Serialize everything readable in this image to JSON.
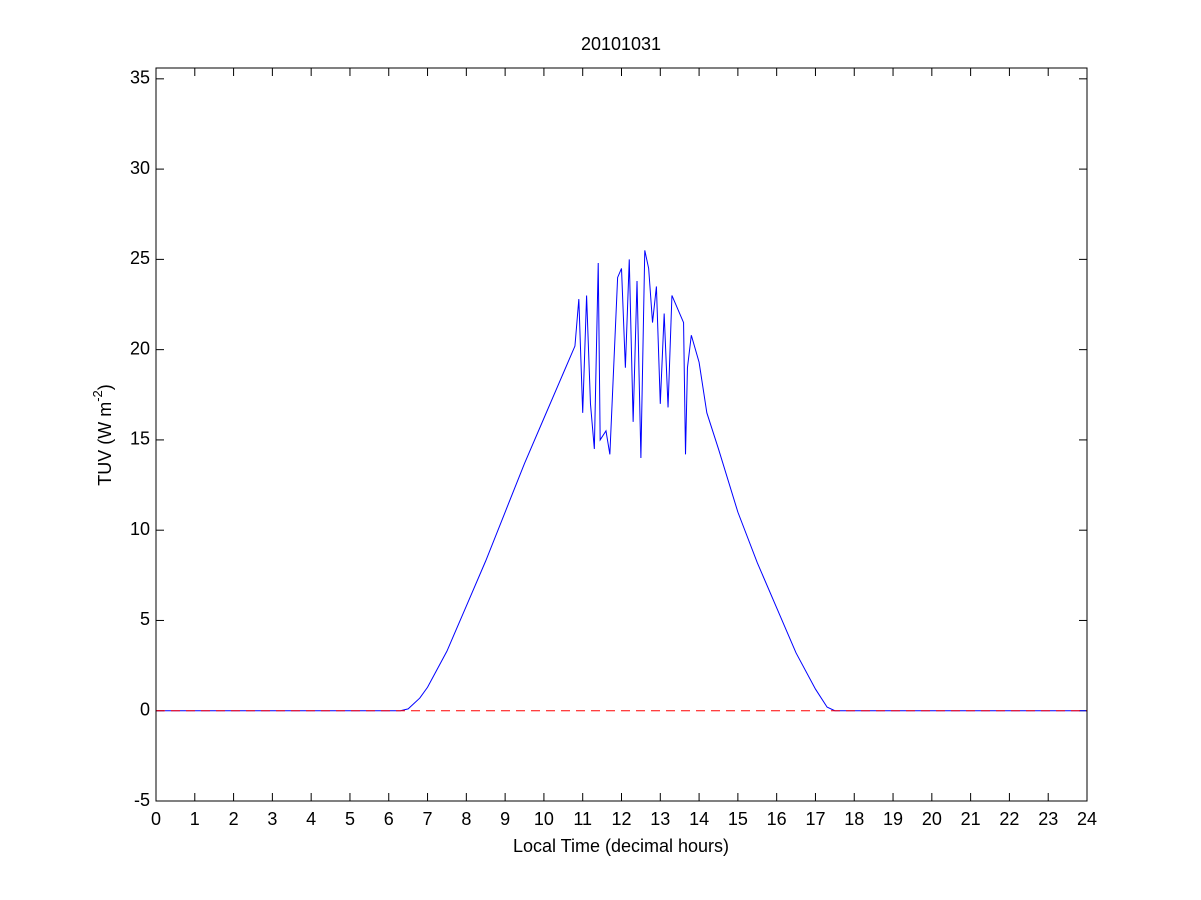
{
  "chart_data": {
    "type": "line",
    "title": "20101031",
    "xlabel": "Local Time (decimal hours)",
    "ylabel": {
      "text": "TUV (W m",
      "superscript": "-2",
      "suffix": ")"
    },
    "xlim": [
      0,
      24
    ],
    "xticks": [
      0,
      1,
      2,
      3,
      4,
      5,
      6,
      7,
      8,
      9,
      10,
      11,
      12,
      13,
      14,
      15,
      16,
      17,
      18,
      19,
      20,
      21,
      22,
      23,
      24
    ],
    "ylim": [
      -5,
      35.6
    ],
    "yticks": [
      -5,
      0,
      5,
      10,
      15,
      20,
      25,
      30,
      35
    ],
    "grid": false,
    "series": [
      {
        "color": "#0000ff",
        "dash": false,
        "x": [
          0,
          6.3,
          6.5,
          6.8,
          7,
          7.5,
          8,
          8.5,
          9,
          9.5,
          10,
          10.5,
          10.8,
          10.9,
          11.0,
          11.1,
          11.2,
          11.3,
          11.4,
          11.45,
          11.6,
          11.7,
          11.9,
          12.0,
          12.1,
          12.2,
          12.3,
          12.4,
          12.5,
          12.6,
          12.7,
          12.8,
          12.9,
          13.0,
          13.1,
          13.2,
          13.3,
          13.5,
          13.6,
          13.65,
          13.7,
          13.8,
          14.0,
          14.2,
          14.5,
          15,
          15.5,
          16,
          16.5,
          17,
          17.3,
          17.5,
          24
        ],
        "values": [
          0,
          0,
          0.1,
          0.7,
          1.3,
          3.3,
          5.8,
          8.3,
          11,
          13.7,
          16.2,
          18.7,
          20.2,
          22.8,
          16.5,
          23,
          17,
          14.5,
          24.8,
          15,
          15.5,
          14.2,
          24,
          24.5,
          19,
          25,
          16,
          23.8,
          14,
          25.5,
          24.5,
          21.5,
          23.5,
          17,
          22,
          16.8,
          23,
          22,
          21.5,
          14.2,
          19,
          20.8,
          19.3,
          16.5,
          14.5,
          11,
          8.2,
          5.7,
          3.2,
          1.2,
          0.2,
          0,
          0
        ]
      },
      {
        "color": "#ff0000",
        "dash": true,
        "x": [
          0,
          24
        ],
        "values": [
          0,
          0
        ]
      }
    ]
  }
}
